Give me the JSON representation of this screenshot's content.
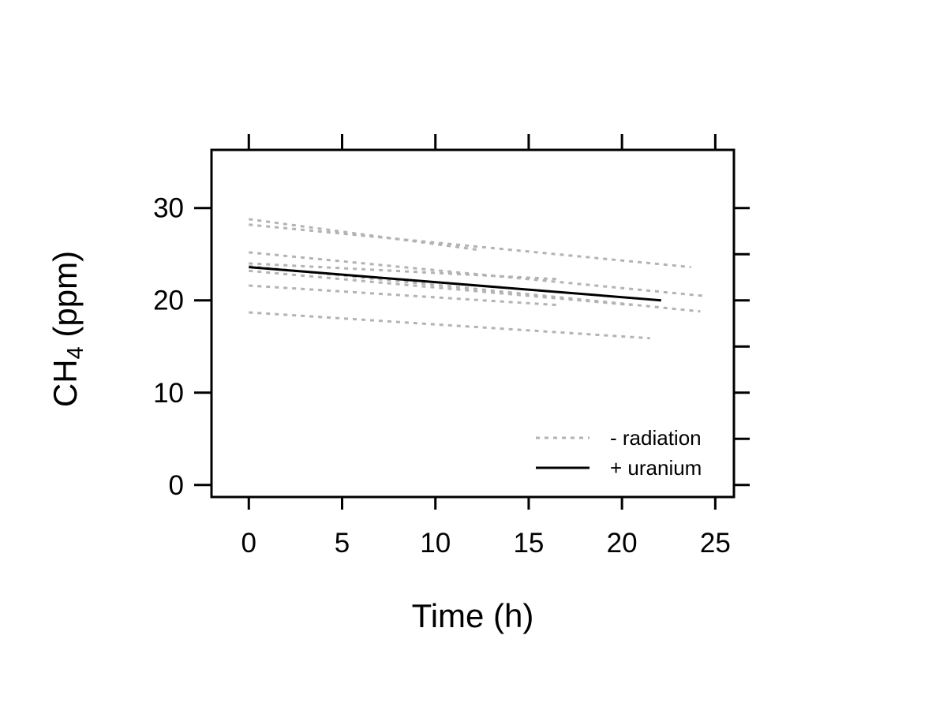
{
  "chart_data": {
    "type": "line",
    "xlabel": "Time (h)",
    "ylabel": {
      "main": "CH",
      "sub": "4",
      "rest": " (ppm)"
    },
    "xlim": [
      -2,
      26
    ],
    "ylim": [
      -1.3,
      36.3
    ],
    "x_ticks": [
      0,
      5,
      10,
      15,
      20,
      25
    ],
    "y_ticks": [
      0,
      10,
      20,
      30
    ],
    "y_minor_ticks_right": [
      0,
      5,
      10,
      15,
      20,
      25,
      30
    ],
    "x_ticks_top": [
      0,
      5,
      10,
      15,
      20,
      25
    ],
    "grid": false,
    "legend": {
      "position": "bottom-right",
      "entries": [
        {
          "label": "- radiation",
          "style": "dotted",
          "color": "#b3b3b3"
        },
        {
          "label": "+ uranium",
          "style": "solid",
          "color": "#000000"
        }
      ]
    },
    "series": [
      {
        "group": "- radiation",
        "color": "#b3b3b3",
        "style": "dotted",
        "x": [
          0,
          12.2
        ],
        "y": [
          28.8,
          25.5
        ]
      },
      {
        "group": "- radiation",
        "color": "#b3b3b3",
        "style": "dotted",
        "x": [
          0,
          23.7
        ],
        "y": [
          28.2,
          23.6
        ]
      },
      {
        "group": "- radiation",
        "color": "#b3b3b3",
        "style": "dotted",
        "x": [
          0,
          24.3
        ],
        "y": [
          25.2,
          20.5
        ]
      },
      {
        "group": "- radiation",
        "color": "#b3b3b3",
        "style": "dotted",
        "x": [
          0,
          16.5
        ],
        "y": [
          24.0,
          22.3
        ]
      },
      {
        "group": "- radiation",
        "color": "#b3b3b3",
        "style": "dotted",
        "x": [
          0,
          20.5
        ],
        "y": [
          23.2,
          19.5
        ]
      },
      {
        "group": "- radiation",
        "color": "#b3b3b3",
        "style": "dotted",
        "x": [
          0,
          24.2
        ],
        "y": [
          23.7,
          18.8
        ]
      },
      {
        "group": "- radiation",
        "color": "#b3b3b3",
        "style": "dotted",
        "x": [
          0,
          16.5
        ],
        "y": [
          21.6,
          19.5
        ]
      },
      {
        "group": "- radiation",
        "color": "#b3b3b3",
        "style": "dotted",
        "x": [
          0,
          21.5
        ],
        "y": [
          18.7,
          15.9
        ]
      },
      {
        "group": "+ uranium",
        "color": "#000000",
        "style": "solid",
        "x": [
          0,
          22.1
        ],
        "y": [
          23.6,
          20.0
        ]
      }
    ]
  }
}
